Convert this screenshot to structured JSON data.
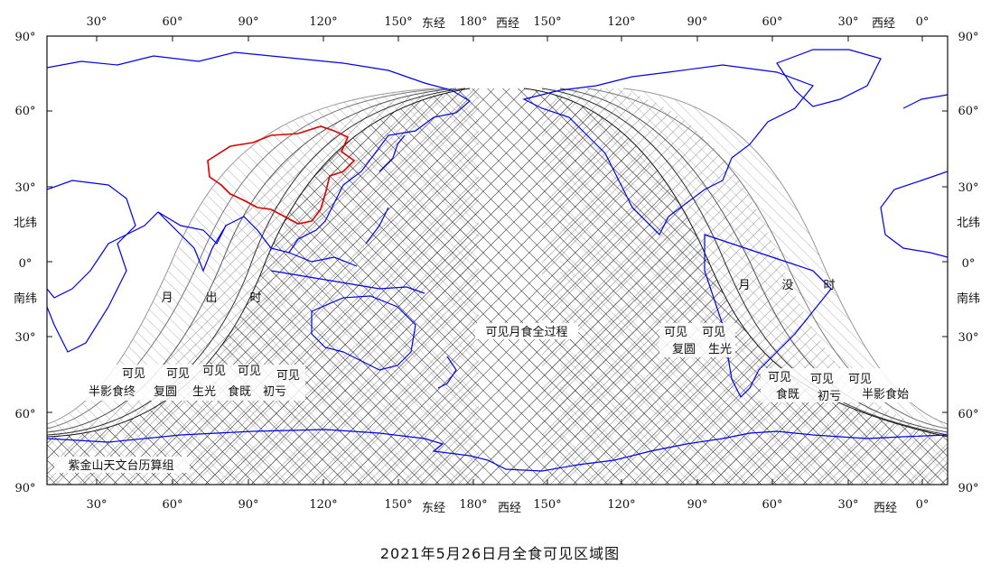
{
  "title": "2021年5月26日月全食可见区域图",
  "credit": "紫金山天文台历算组",
  "axes": {
    "top_left_ticks": [
      "30°",
      "60°",
      "90°",
      "120°",
      "150°"
    ],
    "top_right_ticks": [
      "150°",
      "120°",
      "90°",
      "60°",
      "30°"
    ],
    "east_label": "东经",
    "deg180": "180°",
    "west_label": "西经",
    "zero": "0°",
    "lat_ticks": [
      "90°",
      "60°",
      "30°",
      "0°",
      "30°",
      "60°",
      "90°"
    ],
    "north_label": "北纬",
    "south_label": "南纬"
  },
  "regions": {
    "moonrise": [
      "月",
      "出",
      "时"
    ],
    "moonset": [
      "月",
      "没",
      "时"
    ],
    "full_visible": "可见月食全过程"
  },
  "labels_left": [
    {
      "top": "可见",
      "bottom": "半影食终"
    },
    {
      "top": "可见",
      "bottom": "复圆"
    },
    {
      "top": "可见",
      "bottom": "生光"
    },
    {
      "top": "可见",
      "bottom": "食既"
    },
    {
      "top": "可见",
      "bottom": "初亏"
    }
  ],
  "labels_right": [
    {
      "top": "可见",
      "bottom": "复圆"
    },
    {
      "top": "可见",
      "bottom": "生光"
    },
    {
      "top": "可见",
      "bottom": "食既"
    },
    {
      "top": "可见",
      "bottom": "初亏"
    },
    {
      "top": "可见",
      "bottom": "半影食始"
    }
  ],
  "colors": {
    "coastline": "#0000ee",
    "china_border": "#dd0000",
    "hatch_dark": "#111111",
    "hatch_light": "#aaaaaa"
  }
}
